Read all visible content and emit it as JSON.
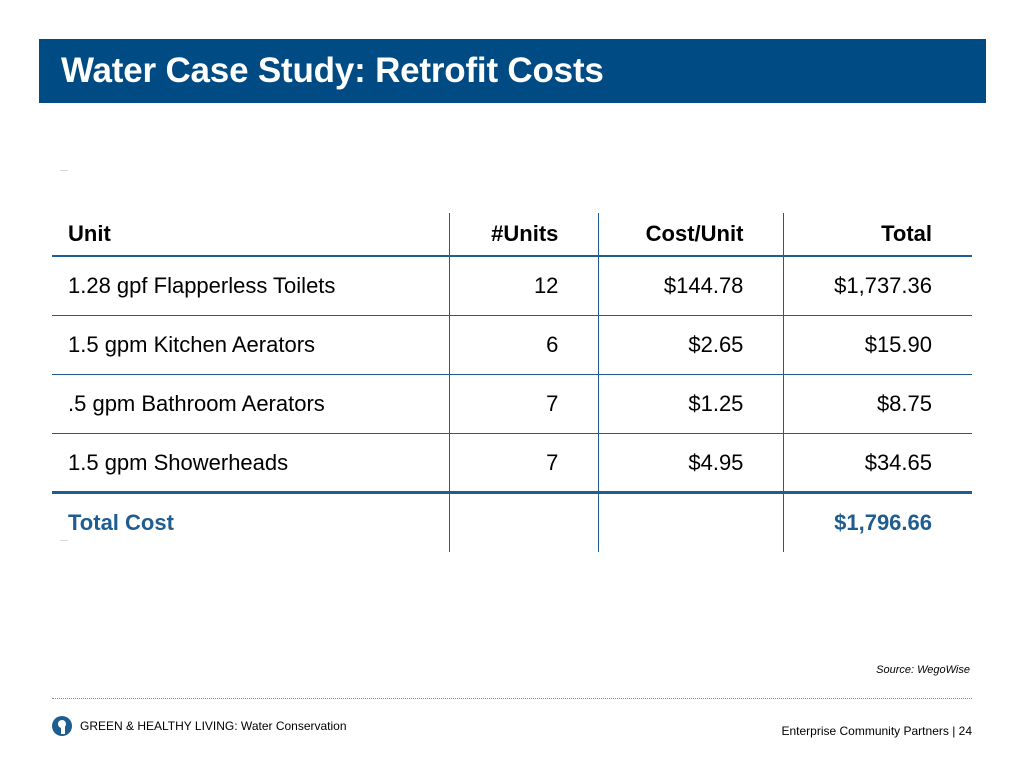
{
  "slide": {
    "title": "Water Case Study: Retrofit Costs",
    "brand_color": "#004b84",
    "accent_color": "#1f5c90"
  },
  "table": {
    "headers": [
      "Unit",
      "#Units",
      "Cost/Unit",
      "Total"
    ],
    "rows": [
      [
        "1.28 gpf Flapperless Toilets",
        "12",
        "$144.78",
        "$1,737.36"
      ],
      [
        "1.5 gpm Kitchen Aerators",
        "6",
        "$2.65",
        "$15.90"
      ],
      [
        ".5 gpm Bathroom Aerators",
        "7",
        "$1.25",
        "$8.75"
      ],
      [
        "1.5 gpm Showerheads",
        "7",
        "$4.95",
        "$34.65"
      ]
    ],
    "total_row": [
      "Total Cost",
      "",
      "",
      "$1,796.66"
    ]
  },
  "source": "Source: WegoWise",
  "footer": {
    "logo_icon": "enterprise-logo-icon",
    "left_text": "GREEN & HEALTHY LIVING: Water Conservation",
    "right_text": "Enterprise Community Partners | 24"
  }
}
